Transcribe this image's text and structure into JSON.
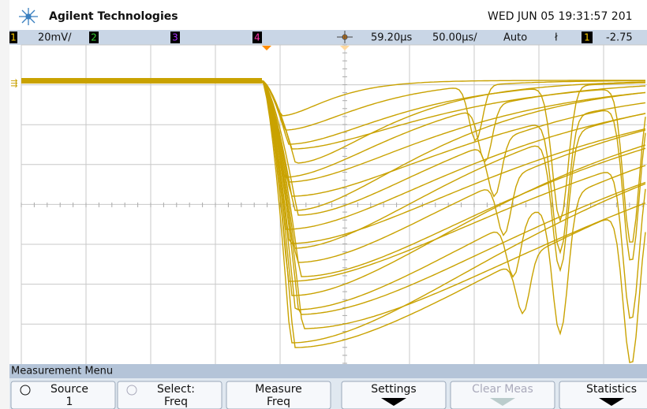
{
  "header": {
    "brand": "Agilent Technologies",
    "datetime": "WED JUN 05 19:31:57 201"
  },
  "status_bar": {
    "ch1": "1",
    "ch1_scale": "20mV/",
    "ch2": "2",
    "ch3": "3",
    "ch4": "4",
    "delay": "59.20µs",
    "timebase": "50.00µs/",
    "trigger_mode": "Auto",
    "trigger_source": "1",
    "trigger_level": "-2.75"
  },
  "menu": {
    "title": "Measurement Menu",
    "buttons": [
      {
        "label": "Source",
        "value": "1"
      },
      {
        "label": "Select:",
        "value": "Freq"
      },
      {
        "label": "Measure",
        "value": "Freq"
      },
      {
        "label": "Settings"
      },
      {
        "label": "Clear Meas"
      },
      {
        "label": "Statistics"
      }
    ]
  }
}
